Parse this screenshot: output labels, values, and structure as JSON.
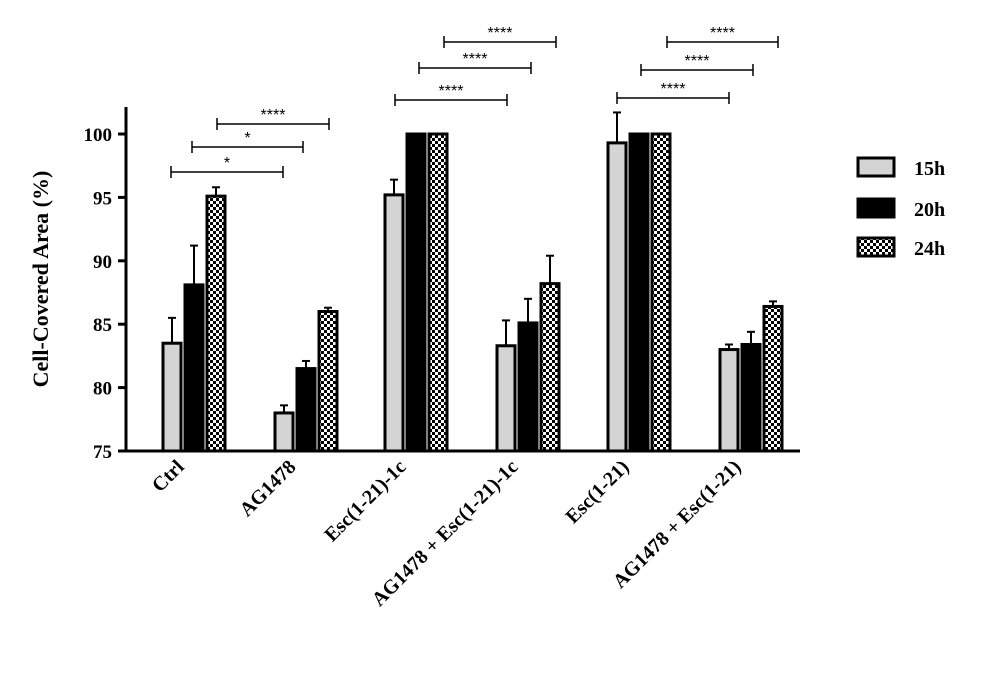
{
  "chart_data": {
    "type": "bar",
    "title": "",
    "xlabel": "",
    "ylabel": "Cell-Covered Area (%)",
    "ylim": [
      75,
      102
    ],
    "yticks": [
      75,
      80,
      85,
      90,
      95,
      100
    ],
    "categories": [
      "Ctrl",
      "AG1478",
      "Esc(1-21)-1c",
      "AG1478 + Esc(1-21)-1c",
      "Esc(1-21)",
      "AG1478 + Esc(1-21)"
    ],
    "series": [
      {
        "name": "15h",
        "fill": "light-grey",
        "values": [
          83.5,
          78.0,
          95.2,
          83.3,
          99.3,
          83.0
        ],
        "errors": [
          2.0,
          0.6,
          1.2,
          2.0,
          2.4,
          0.4
        ]
      },
      {
        "name": "20h",
        "fill": "black",
        "values": [
          88.1,
          81.5,
          100,
          85.1,
          100,
          83.4
        ],
        "errors": [
          3.1,
          0.6,
          0,
          1.9,
          0,
          1.0
        ]
      },
      {
        "name": "24h",
        "fill": "checker",
        "values": [
          95.1,
          86.0,
          100,
          88.2,
          100,
          86.4
        ],
        "errors": [
          0.7,
          0.3,
          0,
          2.2,
          0,
          0.4
        ]
      }
    ],
    "legend": {
      "placement": "right",
      "entries": [
        "15h",
        "20h",
        "24h"
      ]
    },
    "grid": false,
    "significance": [
      {
        "group": 0,
        "from_series": 0,
        "to_series": 0,
        "label": "*",
        "level": 1
      },
      {
        "group": 0,
        "label": "*",
        "level": 2
      },
      {
        "group": 0,
        "label": "****",
        "level": 3
      },
      {
        "group": 2,
        "label": "****",
        "level": 1
      },
      {
        "group": 2,
        "label": "****",
        "level": 2
      },
      {
        "group": 2,
        "label": "****",
        "level": 3
      },
      {
        "group": 4,
        "label": "****",
        "level": 1
      },
      {
        "group": 4,
        "label": "****",
        "level": 2
      },
      {
        "group": 4,
        "label": "****",
        "level": 3
      }
    ]
  },
  "colors": {
    "bar_15h": "#d4d4d4",
    "bar_20h": "#000000",
    "axis": "#000000",
    "background": "#ffffff"
  }
}
